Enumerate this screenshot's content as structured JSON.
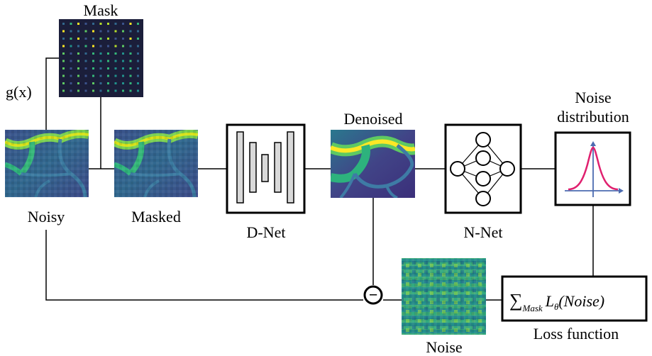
{
  "labels": {
    "mask": "Mask",
    "g": "g(x)",
    "noisy": "Noisy",
    "masked": "Masked",
    "dnet": "D-Net",
    "denoised": "Denoised",
    "nnet": "N-Net",
    "noise_dist_1": "Noise",
    "noise_dist_2": "distribution",
    "noise": "Noise",
    "loss_function": "Loss function"
  },
  "loss_formula": {
    "sum": "∑",
    "subscript": "Mask",
    "L": "L",
    "theta": "θ",
    "arg": "(Noise)"
  },
  "minus_symbol": "−",
  "colors": {
    "gaussian_curve": "#e0206f",
    "axes": "#4c6bb0",
    "viridis_dark": "#440154",
    "viridis_mid": "#31688e",
    "viridis_teal": "#21918c",
    "viridis_green": "#35b779",
    "viridis_yellow": "#fde725"
  }
}
